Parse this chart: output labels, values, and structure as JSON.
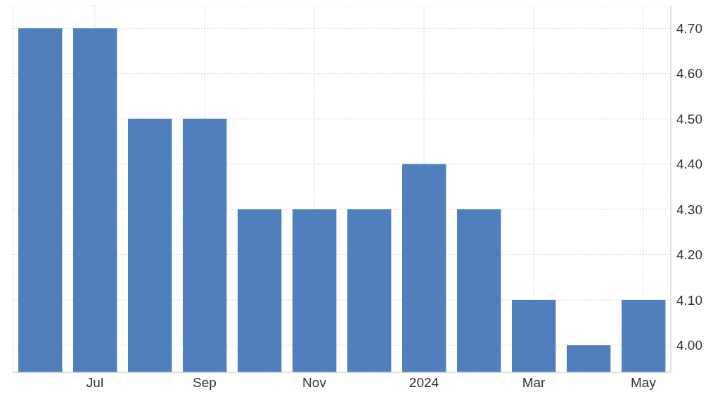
{
  "chart_data": {
    "type": "bar",
    "categories": [
      null,
      "Jul",
      null,
      "Sep",
      null,
      "Nov",
      null,
      "2024",
      null,
      "Mar",
      null,
      "May"
    ],
    "values": [
      4.7,
      4.7,
      4.5,
      4.5,
      4.3,
      4.3,
      4.3,
      4.4,
      4.3,
      4.1,
      4.0,
      4.1
    ],
    "color": "#4f80bd",
    "ylim": [
      3.94,
      4.75
    ],
    "yticks": [
      {
        "value": 4.0,
        "label": "4.00"
      },
      {
        "value": 4.1,
        "label": "4.10"
      },
      {
        "value": 4.2,
        "label": "4.20"
      },
      {
        "value": 4.3,
        "label": "4.30"
      },
      {
        "value": 4.4,
        "label": "4.40"
      },
      {
        "value": 4.5,
        "label": "4.50"
      },
      {
        "value": 4.6,
        "label": "4.60"
      },
      {
        "value": 4.7,
        "label": "4.70"
      }
    ],
    "grid": true
  }
}
